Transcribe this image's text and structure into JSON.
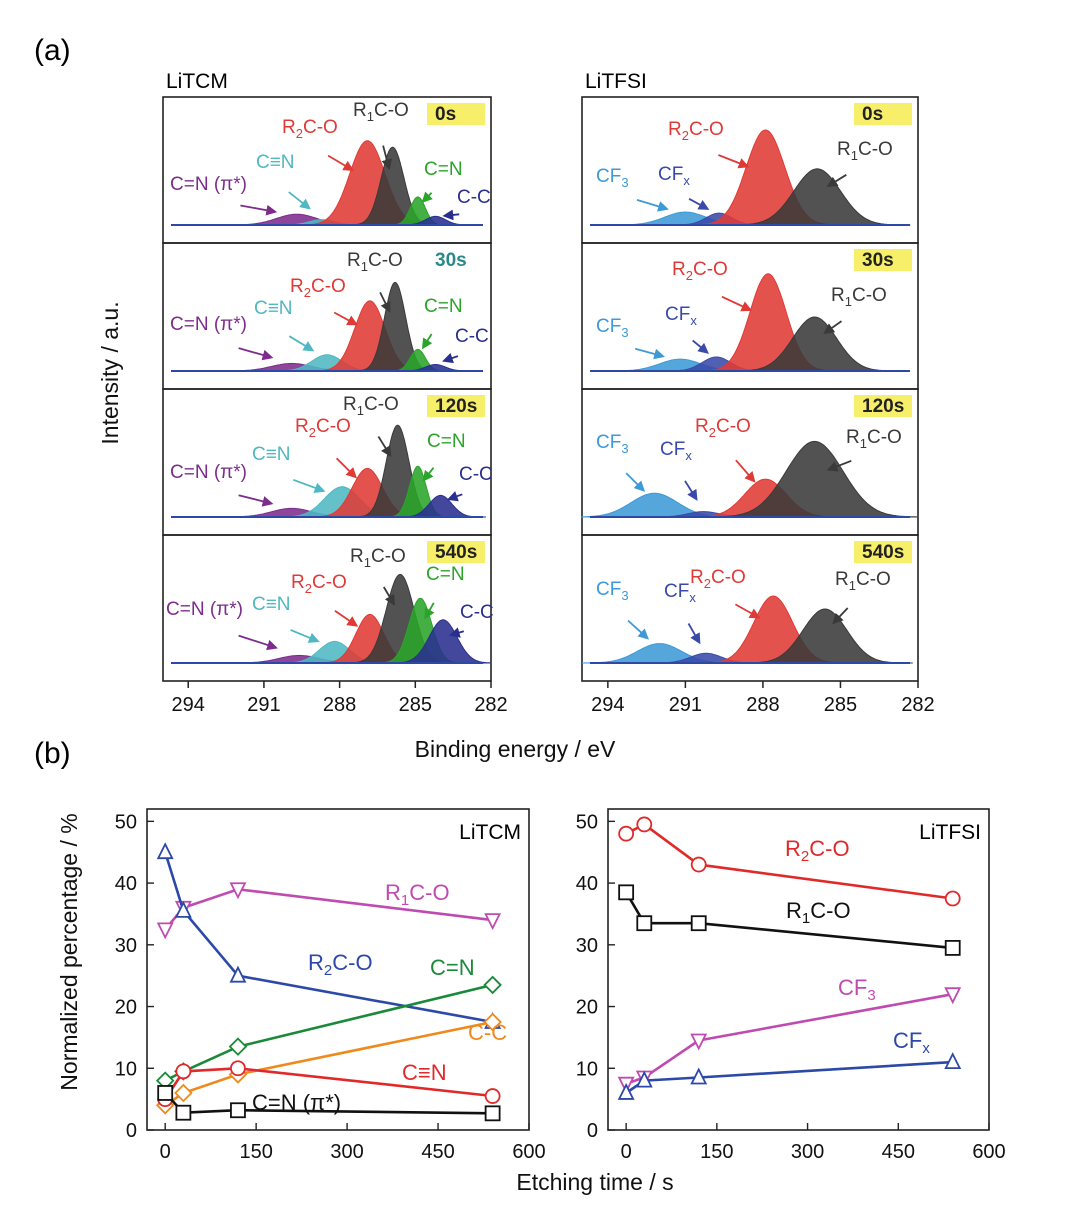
{
  "figure": {
    "panel_a_label": "(a)",
    "panel_b_label": "(b)",
    "panel_a_ylabel": "Intensity / a.u.",
    "panel_a_xlabel": "Binding energy / eV",
    "panel_b_ylabel": "Normalized percentage / %",
    "panel_b_xlabel": "Etching time / s",
    "colors": {
      "red": "#e03a36",
      "black": "#3a3a3a",
      "green": "#2aa52a",
      "navy": "#2a2f8f",
      "teal": "#4fb8c2",
      "purple": "#7d2c8c",
      "cf3": "#3d9ad6",
      "cfx": "#3a4aa8",
      "tag_bg": "#f7ee6a",
      "magenta": "#c04bb0",
      "orange": "#ee8a1d",
      "line_blue": "#2c49a8",
      "line_green": "#1a8a3a",
      "line_red": "#e02a2a",
      "line_black": "#111111"
    }
  },
  "chart_data": [
    {
      "type": "area",
      "title": "LiTCM",
      "xlabel": "Binding energy / eV",
      "ylabel": "Intensity / a.u.",
      "x_reversed": true,
      "xlim": [
        295,
        282
      ],
      "xticks": [
        294,
        291,
        288,
        285,
        282
      ],
      "panels": [
        {
          "time_label": "0s",
          "time_tag": true,
          "peaks": [
            {
              "name": "C=N (π*)",
              "center": 289.7,
              "height": 0.1,
              "width": 0.8,
              "color": "#7d2c8c"
            },
            {
              "name": "C≡N",
              "center": 288.7,
              "height": 0.05,
              "width": 0.5,
              "color": "#4fb8c2"
            },
            {
              "name": "R2C-O",
              "center": 286.9,
              "height": 0.78,
              "width": 0.7,
              "color": "#e03a36"
            },
            {
              "name": "R1C-O",
              "center": 285.9,
              "height": 0.72,
              "width": 0.45,
              "color": "#3a3a3a"
            },
            {
              "name": "C=N",
              "center": 284.9,
              "height": 0.26,
              "width": 0.3,
              "color": "#2aa52a"
            },
            {
              "name": "C-C",
              "center": 284.2,
              "height": 0.08,
              "width": 0.4,
              "color": "#2a2f8f"
            }
          ],
          "labels": [
            {
              "text": "C=N (π*)",
              "color": "#7d2c8c"
            },
            {
              "text": "C≡N",
              "color": "#4fb8c2"
            },
            {
              "text": "R2C-O",
              "color": "#e03a36"
            },
            {
              "text": "R1C-O",
              "color": "#3a3a3a"
            },
            {
              "text": "C=N",
              "color": "#2aa52a"
            },
            {
              "text": "C-C",
              "color": "#2a2f8f"
            }
          ]
        },
        {
          "time_label": "30s",
          "time_tag": false,
          "peaks": [
            {
              "name": "C=N (π*)",
              "center": 289.9,
              "height": 0.07,
              "width": 0.8,
              "color": "#7d2c8c"
            },
            {
              "name": "C≡N",
              "center": 288.5,
              "height": 0.15,
              "width": 0.6,
              "color": "#4fb8c2"
            },
            {
              "name": "R2C-O",
              "center": 286.8,
              "height": 0.65,
              "width": 0.6,
              "color": "#e03a36"
            },
            {
              "name": "R1C-O",
              "center": 285.8,
              "height": 0.82,
              "width": 0.42,
              "color": "#3a3a3a"
            },
            {
              "name": "C=N",
              "center": 284.9,
              "height": 0.2,
              "width": 0.3,
              "color": "#2aa52a"
            },
            {
              "name": "C-C",
              "center": 284.2,
              "height": 0.06,
              "width": 0.4,
              "color": "#2a2f8f"
            }
          ],
          "labels": [
            {
              "text": "C=N (π*)",
              "color": "#7d2c8c"
            },
            {
              "text": "C≡N",
              "color": "#4fb8c2"
            },
            {
              "text": "R2C-O",
              "color": "#e03a36"
            },
            {
              "text": "R1C-O",
              "color": "#3a3a3a"
            },
            {
              "text": "C=N",
              "color": "#2aa52a"
            },
            {
              "text": "C-C",
              "color": "#2a2f8f"
            }
          ]
        },
        {
          "time_label": "120s",
          "time_tag": true,
          "peaks": [
            {
              "name": "C=N (π*)",
              "center": 289.9,
              "height": 0.08,
              "width": 0.8,
              "color": "#7d2c8c"
            },
            {
              "name": "C≡N",
              "center": 287.9,
              "height": 0.28,
              "width": 0.7,
              "color": "#4fb8c2"
            },
            {
              "name": "R2C-O",
              "center": 286.9,
              "height": 0.45,
              "width": 0.6,
              "color": "#e03a36"
            },
            {
              "name": "R1C-O",
              "center": 285.7,
              "height": 0.85,
              "width": 0.45,
              "color": "#3a3a3a"
            },
            {
              "name": "C=N",
              "center": 284.9,
              "height": 0.47,
              "width": 0.33,
              "color": "#2aa52a"
            },
            {
              "name": "C-C",
              "center": 284.0,
              "height": 0.2,
              "width": 0.45,
              "color": "#2a2f8f"
            }
          ],
          "labels": [
            {
              "text": "C=N (π*)",
              "color": "#7d2c8c"
            },
            {
              "text": "C≡N",
              "color": "#4fb8c2"
            },
            {
              "text": "R2C-O",
              "color": "#e03a36"
            },
            {
              "text": "R1C-O",
              "color": "#3a3a3a"
            },
            {
              "text": "C=N",
              "color": "#2aa52a"
            },
            {
              "text": "C-C",
              "color": "#2a2f8f"
            }
          ]
        },
        {
          "time_label": "540s",
          "time_tag": true,
          "peaks": [
            {
              "name": "C=N (π*)",
              "center": 289.6,
              "height": 0.07,
              "width": 0.8,
              "color": "#7d2c8c"
            },
            {
              "name": "C≡N",
              "center": 288.2,
              "height": 0.2,
              "width": 0.6,
              "color": "#4fb8c2"
            },
            {
              "name": "R2C-O",
              "center": 286.8,
              "height": 0.45,
              "width": 0.55,
              "color": "#e03a36"
            },
            {
              "name": "R1C-O",
              "center": 285.6,
              "height": 0.82,
              "width": 0.55,
              "color": "#3a3a3a"
            },
            {
              "name": "C=N",
              "center": 284.8,
              "height": 0.6,
              "width": 0.45,
              "color": "#2aa52a"
            },
            {
              "name": "C-C",
              "center": 283.9,
              "height": 0.4,
              "width": 0.55,
              "color": "#2a2f8f"
            }
          ],
          "labels": [
            {
              "text": "C=N (π*)",
              "color": "#7d2c8c"
            },
            {
              "text": "C≡N",
              "color": "#4fb8c2"
            },
            {
              "text": "R2C-O",
              "color": "#e03a36"
            },
            {
              "text": "R1C-O",
              "color": "#3a3a3a"
            },
            {
              "text": "C=N",
              "color": "#2aa52a"
            },
            {
              "text": "C-C",
              "color": "#2a2f8f"
            }
          ]
        }
      ]
    },
    {
      "type": "area",
      "title": "LiTFSI",
      "xlabel": "Binding energy / eV",
      "ylabel": "Intensity / a.u.",
      "x_reversed": true,
      "xlim": [
        295,
        282
      ],
      "xticks": [
        294,
        291,
        288,
        285,
        282
      ],
      "panels": [
        {
          "time_label": "0s",
          "time_tag": true,
          "peaks": [
            {
              "name": "CF3",
              "center": 291.0,
              "height": 0.12,
              "width": 0.8,
              "color": "#3d9ad6"
            },
            {
              "name": "CFx",
              "center": 289.7,
              "height": 0.11,
              "width": 0.5,
              "color": "#3a4aa8"
            },
            {
              "name": "R2C-O",
              "center": 287.9,
              "height": 0.88,
              "width": 0.75,
              "color": "#e03a36"
            },
            {
              "name": "R1C-O",
              "center": 285.9,
              "height": 0.52,
              "width": 0.9,
              "color": "#3a3a3a"
            }
          ],
          "labels": [
            {
              "text": "CF3",
              "color": "#3d9ad6"
            },
            {
              "text": "CFx",
              "color": "#3a4aa8"
            },
            {
              "text": "R2C-O",
              "color": "#e03a36"
            },
            {
              "text": "R1C-O",
              "color": "#3a3a3a"
            }
          ]
        },
        {
          "time_label": "30s",
          "time_tag": true,
          "peaks": [
            {
              "name": "CF3",
              "center": 291.2,
              "height": 0.11,
              "width": 0.8,
              "color": "#3d9ad6"
            },
            {
              "name": "CFx",
              "center": 289.8,
              "height": 0.13,
              "width": 0.55,
              "color": "#3a4aa8"
            },
            {
              "name": "R2C-O",
              "center": 287.8,
              "height": 0.9,
              "width": 0.7,
              "color": "#e03a36"
            },
            {
              "name": "R1C-O",
              "center": 286.0,
              "height": 0.5,
              "width": 0.85,
              "color": "#3a3a3a"
            }
          ],
          "labels": [
            {
              "text": "CF3",
              "color": "#3d9ad6"
            },
            {
              "text": "CFx",
              "color": "#3a4aa8"
            },
            {
              "text": "R2C-O",
              "color": "#e03a36"
            },
            {
              "text": "R1C-O",
              "color": "#3a3a3a"
            }
          ]
        },
        {
          "time_label": "120s",
          "time_tag": true,
          "peaks": [
            {
              "name": "CF3",
              "center": 292.2,
              "height": 0.22,
              "width": 0.9,
              "color": "#3d9ad6"
            },
            {
              "name": "CFx",
              "center": 290.3,
              "height": 0.05,
              "width": 0.6,
              "color": "#3a4aa8"
            },
            {
              "name": "R2C-O",
              "center": 287.9,
              "height": 0.35,
              "width": 0.8,
              "color": "#e03a36"
            },
            {
              "name": "R1C-O",
              "center": 286.0,
              "height": 0.7,
              "width": 1.1,
              "color": "#3a3a3a"
            }
          ],
          "labels": [
            {
              "text": "CF3",
              "color": "#3d9ad6"
            },
            {
              "text": "CFx",
              "color": "#3a4aa8"
            },
            {
              "text": "R2C-O",
              "color": "#e03a36"
            },
            {
              "text": "R1C-O",
              "color": "#3a3a3a"
            }
          ]
        },
        {
          "time_label": "540s",
          "time_tag": true,
          "peaks": [
            {
              "name": "CF3",
              "center": 292.0,
              "height": 0.18,
              "width": 0.85,
              "color": "#3d9ad6"
            },
            {
              "name": "CFx",
              "center": 290.2,
              "height": 0.09,
              "width": 0.6,
              "color": "#3a4aa8"
            },
            {
              "name": "R2C-O",
              "center": 287.6,
              "height": 0.62,
              "width": 0.75,
              "color": "#e03a36"
            },
            {
              "name": "R1C-O",
              "center": 285.6,
              "height": 0.5,
              "width": 0.85,
              "color": "#3a3a3a"
            }
          ],
          "labels": [
            {
              "text": "CF3",
              "color": "#3d9ad6"
            },
            {
              "text": "CFx",
              "color": "#3a4aa8"
            },
            {
              "text": "R2C-O",
              "color": "#e03a36"
            },
            {
              "text": "R1C-O",
              "color": "#3a3a3a"
            }
          ]
        }
      ]
    },
    {
      "type": "line",
      "title": "LiTCM",
      "xlabel": "Etching time / s",
      "ylabel": "Normalized percentage / %",
      "xlim": [
        -30,
        600
      ],
      "ylim": [
        0,
        52
      ],
      "xticks": [
        0,
        150,
        300,
        450,
        600
      ],
      "yticks": [
        0,
        10,
        20,
        30,
        40,
        50
      ],
      "x": [
        0,
        30,
        120,
        540
      ],
      "series": [
        {
          "name": "R1C-O",
          "values": [
            32.5,
            36,
            39,
            34
          ],
          "marker": "triangle-down",
          "color": "#c04bb0"
        },
        {
          "name": "R2C-O",
          "values": [
            45,
            35.5,
            25,
            17.5
          ],
          "marker": "triangle-up",
          "color": "#2c49a8"
        },
        {
          "name": "C=N",
          "values": [
            8,
            9.5,
            13.5,
            23.5
          ],
          "marker": "diamond",
          "color": "#1a8a3a"
        },
        {
          "name": "C-C",
          "values": [
            4,
            6,
            9,
            17.5
          ],
          "marker": "diamond",
          "color": "#ee8a1d"
        },
        {
          "name": "C≡N",
          "values": [
            5,
            9.5,
            10,
            5.5
          ],
          "marker": "circle",
          "color": "#e02a2a"
        },
        {
          "name": "C=N (π*)",
          "values": [
            6,
            2.8,
            3.2,
            2.7
          ],
          "marker": "square",
          "color": "#111111"
        }
      ]
    },
    {
      "type": "line",
      "title": "LiTFSI",
      "xlabel": "Etching time / s",
      "ylabel": "Normalized percentage / %",
      "xlim": [
        -30,
        600
      ],
      "ylim": [
        0,
        52
      ],
      "xticks": [
        0,
        150,
        300,
        450,
        600
      ],
      "yticks": [
        0,
        10,
        20,
        30,
        40,
        50
      ],
      "x": [
        0,
        30,
        120,
        540
      ],
      "series": [
        {
          "name": "R2C-O",
          "values": [
            48,
            49.5,
            43,
            37.5
          ],
          "marker": "circle",
          "color": "#e02a2a"
        },
        {
          "name": "R1C-O",
          "values": [
            38.5,
            33.5,
            33.5,
            29.5
          ],
          "marker": "square",
          "color": "#111111"
        },
        {
          "name": "CF3",
          "values": [
            7.5,
            8.5,
            14.5,
            22
          ],
          "marker": "triangle-down",
          "color": "#c04bb0"
        },
        {
          "name": "CFx",
          "values": [
            6,
            8,
            8.5,
            11
          ],
          "marker": "triangle-up",
          "color": "#2c49a8"
        }
      ]
    }
  ]
}
